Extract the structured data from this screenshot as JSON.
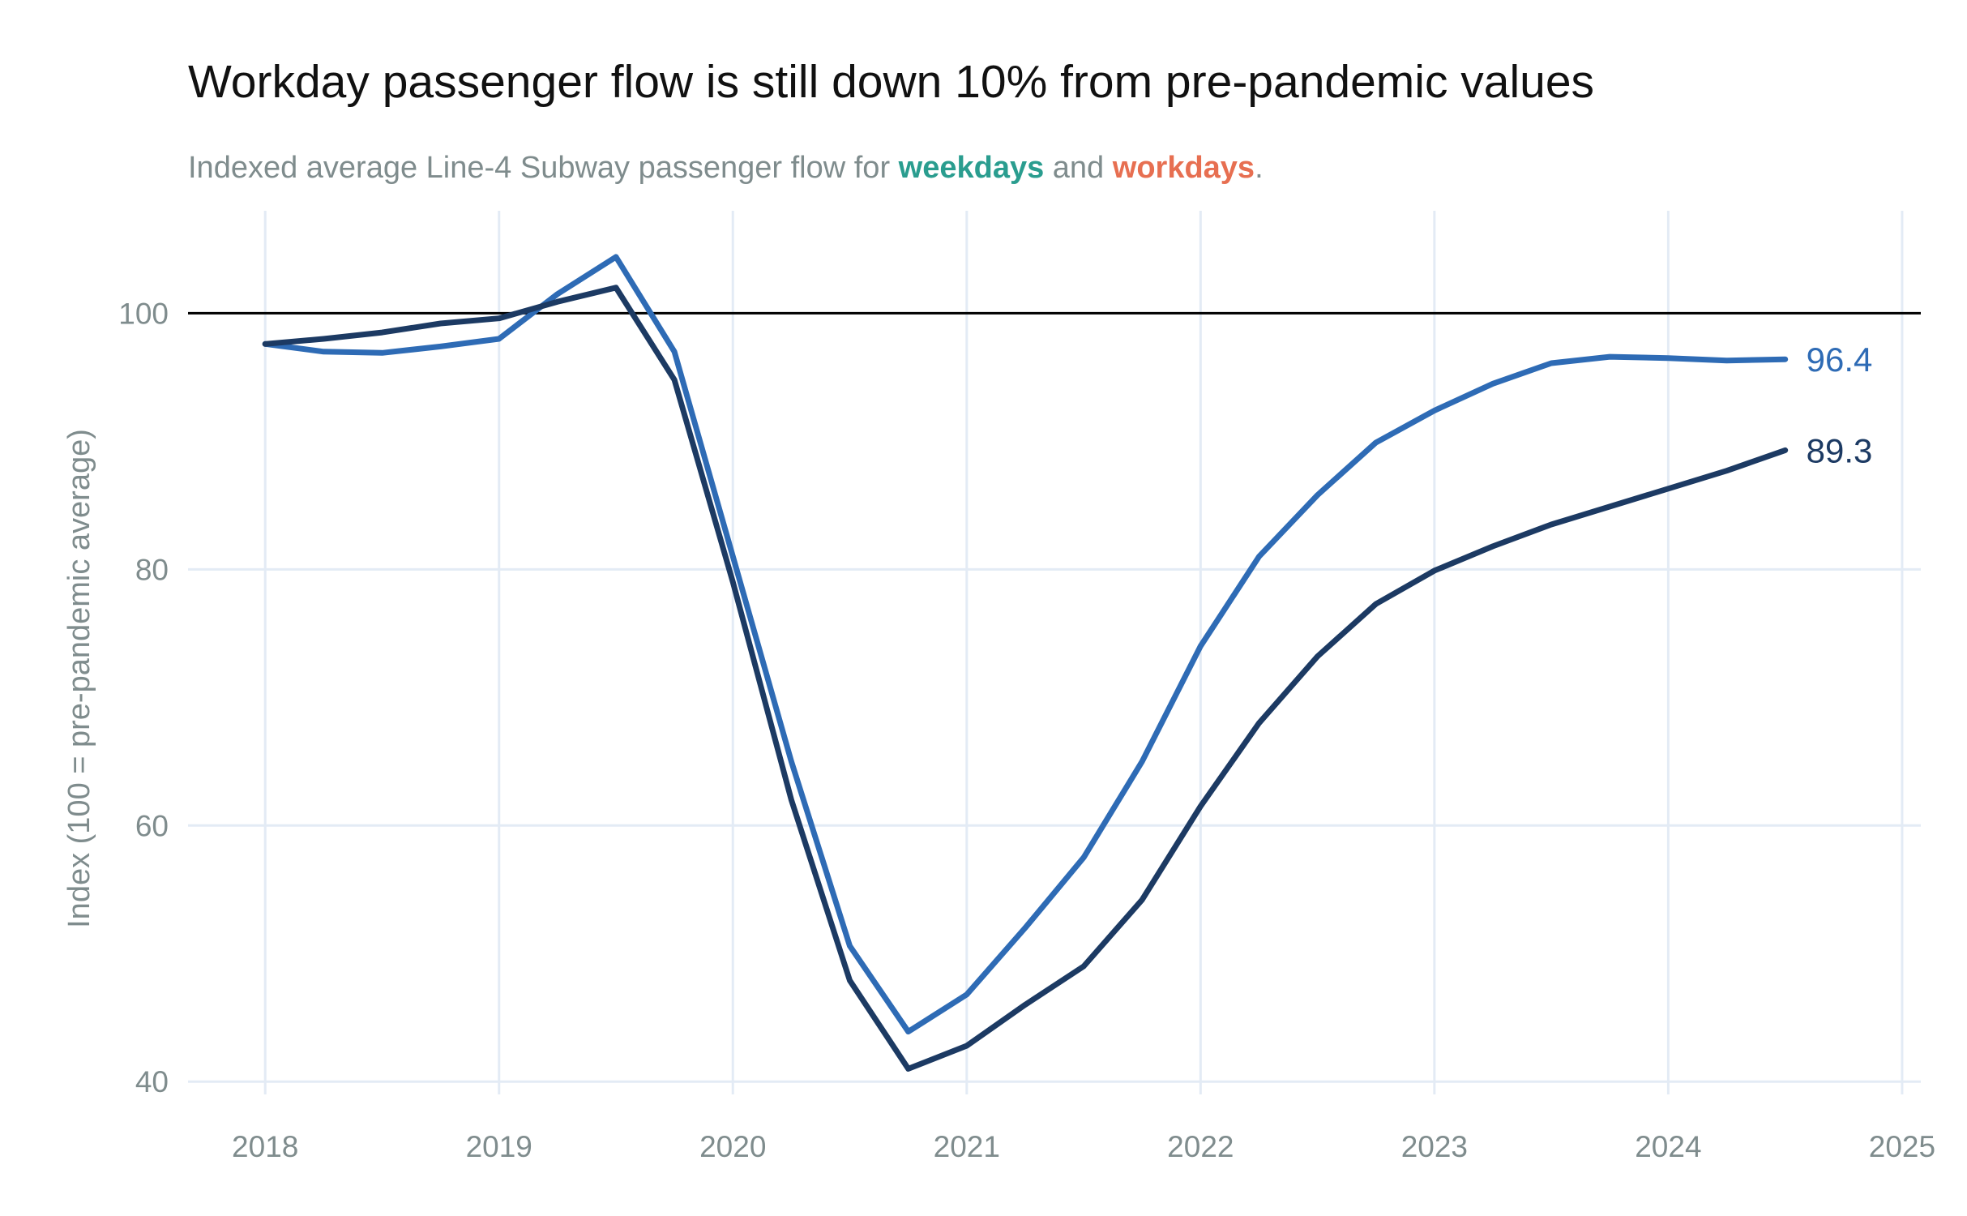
{
  "chart_data": {
    "type": "line",
    "title": "Workday passenger flow is still down 10% from pre-pandemic values",
    "subtitle": {
      "prefix": "Indexed average Line-4 Subway passenger flow for ",
      "highlight1": "weekdays",
      "middle": " and ",
      "highlight2": "workdays",
      "suffix": "."
    },
    "subtitle_colors": {
      "highlight1": "#2a9d8f",
      "highlight2": "#e76f51"
    },
    "xlabel": "",
    "ylabel": "Index (100 = pre-pandemic average)",
    "xlim": [
      2017.67,
      2025.08
    ],
    "ylim": [
      39,
      108
    ],
    "x_ticks": [
      2018,
      2019,
      2020,
      2021,
      2022,
      2023,
      2024,
      2025
    ],
    "y_ticks": [
      40,
      60,
      80,
      100
    ],
    "reference_line": 100,
    "grid": true,
    "series": [
      {
        "color": "#2e6bb5",
        "end_label": "96.4",
        "points": [
          [
            2018.0,
            97.6
          ],
          [
            2018.25,
            97.0
          ],
          [
            2018.5,
            96.9
          ],
          [
            2018.75,
            97.4
          ],
          [
            2019.0,
            98.0
          ],
          [
            2019.25,
            101.5
          ],
          [
            2019.5,
            104.4
          ],
          [
            2019.75,
            97.0
          ],
          [
            2020.0,
            81.0
          ],
          [
            2020.25,
            65.0
          ],
          [
            2020.5,
            50.6
          ],
          [
            2020.75,
            43.9
          ],
          [
            2021.0,
            46.8
          ],
          [
            2021.25,
            52.0
          ],
          [
            2021.5,
            57.5
          ],
          [
            2021.75,
            65.0
          ],
          [
            2022.0,
            74.0
          ],
          [
            2022.25,
            81.0
          ],
          [
            2022.5,
            85.8
          ],
          [
            2022.75,
            89.9
          ],
          [
            2023.0,
            92.4
          ],
          [
            2023.25,
            94.5
          ],
          [
            2023.5,
            96.1
          ],
          [
            2023.75,
            96.6
          ],
          [
            2024.0,
            96.5
          ],
          [
            2024.25,
            96.3
          ],
          [
            2024.5,
            96.4
          ]
        ]
      },
      {
        "color": "#1c3a63",
        "end_label": "89.3",
        "points": [
          [
            2018.0,
            97.6
          ],
          [
            2018.25,
            98.0
          ],
          [
            2018.5,
            98.5
          ],
          [
            2018.75,
            99.2
          ],
          [
            2019.0,
            99.6
          ],
          [
            2019.25,
            100.9
          ],
          [
            2019.5,
            102.0
          ],
          [
            2019.75,
            94.8
          ],
          [
            2020.0,
            79.0
          ],
          [
            2020.25,
            62.0
          ],
          [
            2020.5,
            47.9
          ],
          [
            2020.75,
            41.0
          ],
          [
            2021.0,
            42.8
          ],
          [
            2021.25,
            46.0
          ],
          [
            2021.5,
            49.0
          ],
          [
            2021.75,
            54.2
          ],
          [
            2022.0,
            61.5
          ],
          [
            2022.25,
            68.0
          ],
          [
            2022.5,
            73.2
          ],
          [
            2022.75,
            77.3
          ],
          [
            2023.0,
            79.9
          ],
          [
            2023.25,
            81.8
          ],
          [
            2023.5,
            83.5
          ],
          [
            2023.75,
            84.9
          ],
          [
            2024.0,
            86.3
          ],
          [
            2024.25,
            87.7
          ],
          [
            2024.5,
            89.3
          ]
        ]
      }
    ],
    "colors": {
      "grid": "#e3ebf5",
      "reference": "#000000",
      "tick_text": "#7f8c8d"
    }
  }
}
